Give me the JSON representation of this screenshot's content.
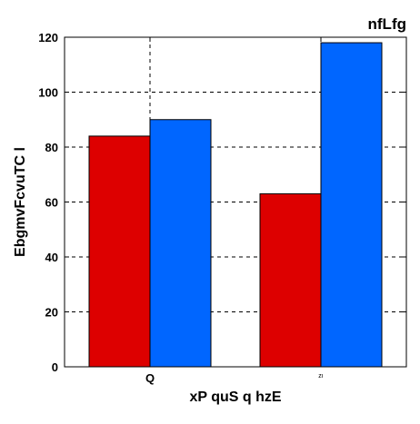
{
  "chart_data": {
    "type": "bar",
    "title": "nfLfg",
    "xlabel": "xP  quS q hzE",
    "ylabel": "EbgmvFcvuTC l",
    "categories": [
      "Q",
      "zı"
    ],
    "series": [
      {
        "values": [
          84,
          63
        ],
        "color": "#dd0000"
      },
      {
        "values": [
          90,
          118
        ],
        "color": "#0066ff"
      }
    ],
    "ylim": [
      0,
      120
    ],
    "yticks": [
      0,
      20,
      40,
      60,
      80,
      100,
      120
    ],
    "grid": "dashed",
    "legend": "none"
  }
}
